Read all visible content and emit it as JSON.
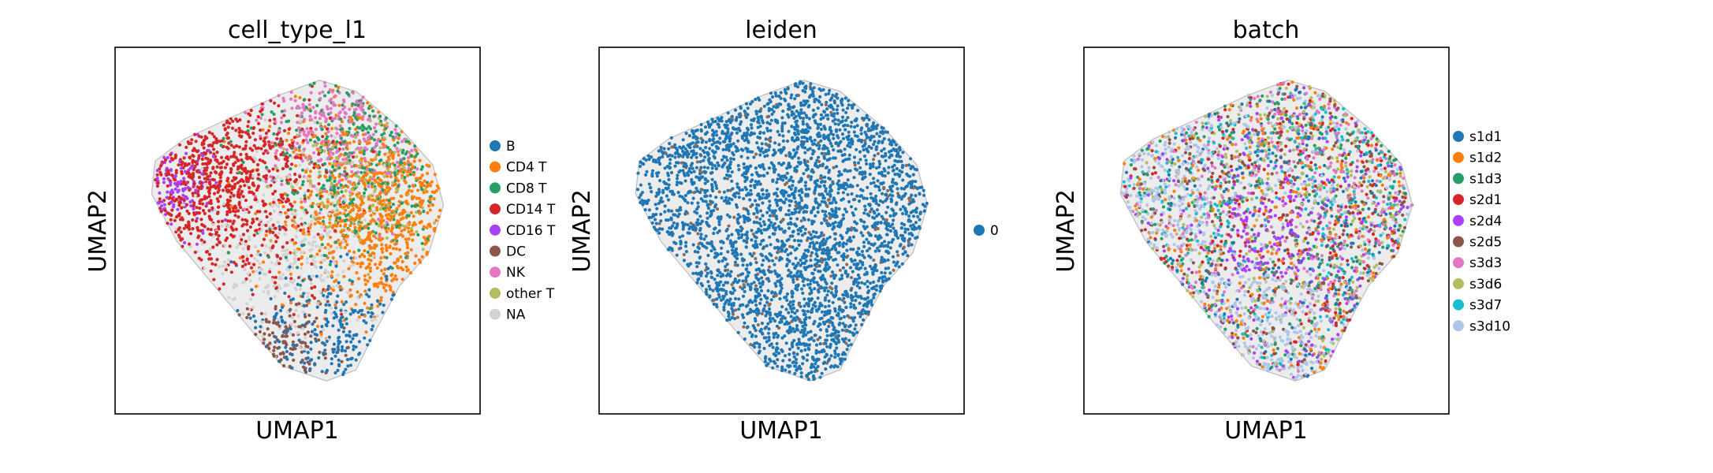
{
  "chart_data": [
    {
      "type": "scatter",
      "title": "cell_type_l1",
      "xlabel": "UMAP1",
      "ylabel": "UMAP2",
      "legend_position": "right",
      "categories": [
        {
          "name": "B",
          "color": "#1f77b4"
        },
        {
          "name": "CD4 T",
          "color": "#ff7f0e"
        },
        {
          "name": "CD8 T",
          "color": "#279e68"
        },
        {
          "name": "CD14 T",
          "color": "#d62728"
        },
        {
          "name": "CD16 T",
          "color": "#aa40fc"
        },
        {
          "name": "DC",
          "color": "#8c564b"
        },
        {
          "name": "NK",
          "color": "#e377c2"
        },
        {
          "name": "other T",
          "color": "#b5bd61"
        },
        {
          "name": "NA",
          "color": "#d3d3d3"
        }
      ]
    },
    {
      "type": "scatter",
      "title": "leiden",
      "xlabel": "UMAP1",
      "ylabel": "UMAP2",
      "legend_position": "right",
      "categories": [
        {
          "name": "0",
          "color": "#1f77b4"
        }
      ]
    },
    {
      "type": "scatter",
      "title": "batch",
      "xlabel": "UMAP1",
      "ylabel": "UMAP2",
      "legend_position": "right",
      "categories": [
        {
          "name": "s1d1",
          "color": "#1f77b4"
        },
        {
          "name": "s1d2",
          "color": "#ff7f0e"
        },
        {
          "name": "s1d3",
          "color": "#279e68"
        },
        {
          "name": "s2d1",
          "color": "#d62728"
        },
        {
          "name": "s2d4",
          "color": "#aa40fc"
        },
        {
          "name": "s2d5",
          "color": "#8c564b"
        },
        {
          "name": "s3d3",
          "color": "#e377c2"
        },
        {
          "name": "s3d6",
          "color": "#b5bd61"
        },
        {
          "name": "s3d7",
          "color": "#17becf"
        },
        {
          "name": "s3d10",
          "color": "#aec7e8"
        }
      ]
    }
  ]
}
